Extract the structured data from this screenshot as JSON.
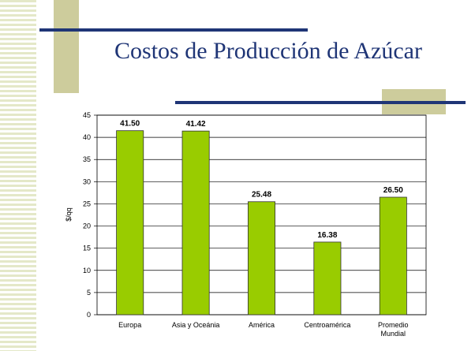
{
  "chart_data": {
    "type": "bar",
    "title": "Costos de Producción de Azúcar",
    "ylabel": "$/qq",
    "categories": [
      "Europa",
      "Asia y Oceánia",
      "América",
      "Centroamérica",
      "Promedio Mundial"
    ],
    "values": [
      41.5,
      41.42,
      25.48,
      16.38,
      26.5
    ],
    "value_labels": [
      "41.50",
      "41.42",
      "25.48",
      "16.38",
      "26.50"
    ],
    "color": "#99cc00",
    "ylim": [
      0,
      45
    ],
    "yticks": [
      0,
      5,
      10,
      15,
      20,
      25,
      30,
      35,
      40,
      45
    ],
    "grid": true
  }
}
